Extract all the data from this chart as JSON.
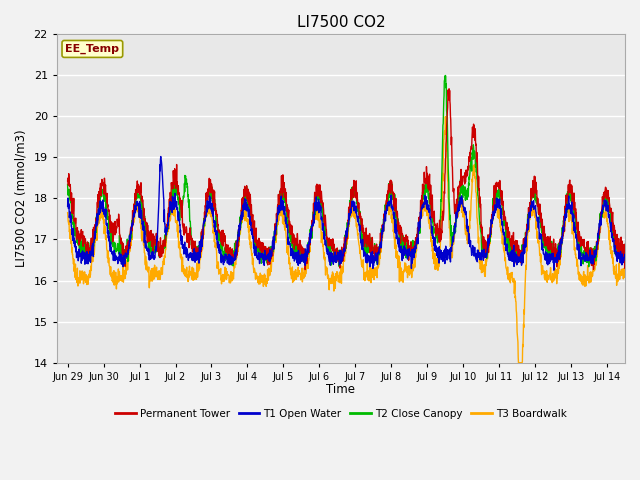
{
  "title": "LI7500 CO2",
  "ylabel": "LI7500 CO2 (mmol/m3)",
  "xlabel": "Time",
  "annotation": "EE_Temp",
  "ylim": [
    14.0,
    22.0
  ],
  "yticks": [
    14.0,
    15.0,
    16.0,
    17.0,
    18.0,
    19.0,
    20.0,
    21.0,
    22.0
  ],
  "xtick_labels": [
    "Jun 29",
    "Jun 30",
    "Jul 1",
    "Jul 2",
    "Jul 3",
    "Jul 4",
    "Jul 5",
    "Jul 6",
    "Jul 7",
    "Jul 8",
    "Jul 9",
    "Jul 10",
    "Jul 11",
    "Jul 12",
    "Jul 13",
    "Jul 14"
  ],
  "colors": {
    "permanent_tower": "#cc0000",
    "t1_open_water": "#0000cc",
    "t2_close_canopy": "#00bb00",
    "t3_boardwalk": "#ffaa00"
  },
  "legend_labels": [
    "Permanent Tower",
    "T1 Open Water",
    "T2 Close Canopy",
    "T3 Boardwalk"
  ],
  "plot_bg": "#e8e8e8",
  "fig_bg": "#f2f2f2",
  "grid_color": "#ffffff",
  "annotation_box_color": "#ffffcc",
  "annotation_text_color": "#880000",
  "annotation_border_color": "#999900",
  "n_points": 2000,
  "t_start": 0.0,
  "t_end": 15.5,
  "xlim": [
    -0.3,
    15.5
  ]
}
